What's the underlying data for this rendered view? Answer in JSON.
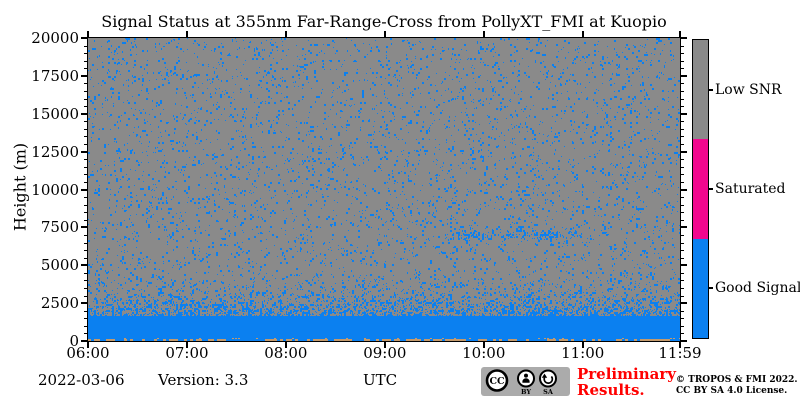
{
  "title": "Signal Status at 355nm Far-Range-Cross from PollyXT_FMI at Kuopio",
  "axes": {
    "ylabel": "Height (m)",
    "y_ticks": [
      {
        "label": "0",
        "value": 0
      },
      {
        "label": "2500",
        "value": 2500
      },
      {
        "label": "5000",
        "value": 5000
      },
      {
        "label": "7500",
        "value": 7500
      },
      {
        "label": "10000",
        "value": 10000
      },
      {
        "label": "12500",
        "value": 12500
      },
      {
        "label": "15000",
        "value": 15000
      },
      {
        "label": "17500",
        "value": 17500
      },
      {
        "label": "20000",
        "value": 20000
      }
    ],
    "y_minor_step_m": 500,
    "x_ticks": [
      {
        "label": "06:00",
        "minute": 0
      },
      {
        "label": "07:00",
        "minute": 60
      },
      {
        "label": "08:00",
        "minute": 120
      },
      {
        "label": "09:00",
        "minute": 180
      },
      {
        "label": "10:00",
        "minute": 240
      },
      {
        "label": "11:00",
        "minute": 300
      },
      {
        "label": "11:59",
        "minute": 359
      }
    ]
  },
  "colorbar": {
    "segments": [
      {
        "label": "Low SNR",
        "color": "#8A8A8A"
      },
      {
        "label": "Saturated",
        "color": "#F2078E"
      },
      {
        "label": "Good Signal",
        "color": "#0B80F0"
      }
    ]
  },
  "footer": {
    "date": "2022-03-06",
    "version": "Version: 3.3",
    "timezone": "UTC",
    "preliminary": [
      "Preliminary",
      "Results."
    ],
    "preliminary_color": "#FF0000",
    "copyright": [
      "© TROPOS & FMI 2022.",
      "CC BY SA 4.0 License."
    ],
    "cc_badge": {
      "cc": "CC",
      "by": "BY",
      "sa": "SA"
    }
  },
  "chart_data": {
    "type": "heatmap",
    "title": "Signal Status at 355nm Far-Range-Cross from PollyXT_FMI at Kuopio",
    "xlabel": "UTC",
    "ylabel": "Height (m)",
    "x_range": [
      "06:00",
      "11:59"
    ],
    "x_total_minutes": 359,
    "ylim": [
      0,
      20000
    ],
    "grid": false,
    "legend_position": "right-colorbar",
    "categories": [
      "Good Signal",
      "Saturated",
      "Low SNR"
    ],
    "background_class": "Low SNR",
    "plot_bg_color": "#8A8A8A",
    "good_color": "#0B80F0",
    "saturated_color": "#F2078E",
    "surface_artifact_color": "#C49A6C",
    "regions": [
      {
        "name": "good-signal-boundary-layer",
        "class": "Good Signal",
        "height_m": [
          0,
          1700
        ],
        "time_min": [
          0,
          359
        ],
        "coverage": 1.0
      },
      {
        "name": "transition-speckle",
        "class": "Good Signal",
        "height_m": [
          1700,
          4600
        ],
        "time_min": [
          0,
          359
        ],
        "coverage_bottom": 0.78,
        "coverage_top": 0.11
      },
      {
        "name": "sparse-speckle",
        "class": "Good Signal",
        "height_m": [
          4600,
          20000
        ],
        "time_min": [
          0,
          359
        ],
        "coverage": 0.11
      },
      {
        "name": "cloud-feature",
        "class": "Good Signal",
        "height_m": [
          6500,
          7600
        ],
        "center_m": 7000,
        "time_min": [
          215,
          302
        ],
        "coverage": 0.4,
        "dense_blobs_min": [
          [
            228,
            242
          ],
          [
            270,
            284
          ]
        ]
      },
      {
        "name": "small-cluster",
        "class": "Good Signal",
        "height_m": [
          5650,
          5950
        ],
        "center_m": 5800,
        "time_min": [
          155,
          163
        ],
        "coverage": 0.3
      },
      {
        "name": "surface-artifact",
        "class": "Unlabeled",
        "height_m": [
          0,
          130
        ],
        "time_min": [
          0,
          359
        ],
        "coverage": 0.55,
        "color": "#C49A6C"
      }
    ]
  }
}
